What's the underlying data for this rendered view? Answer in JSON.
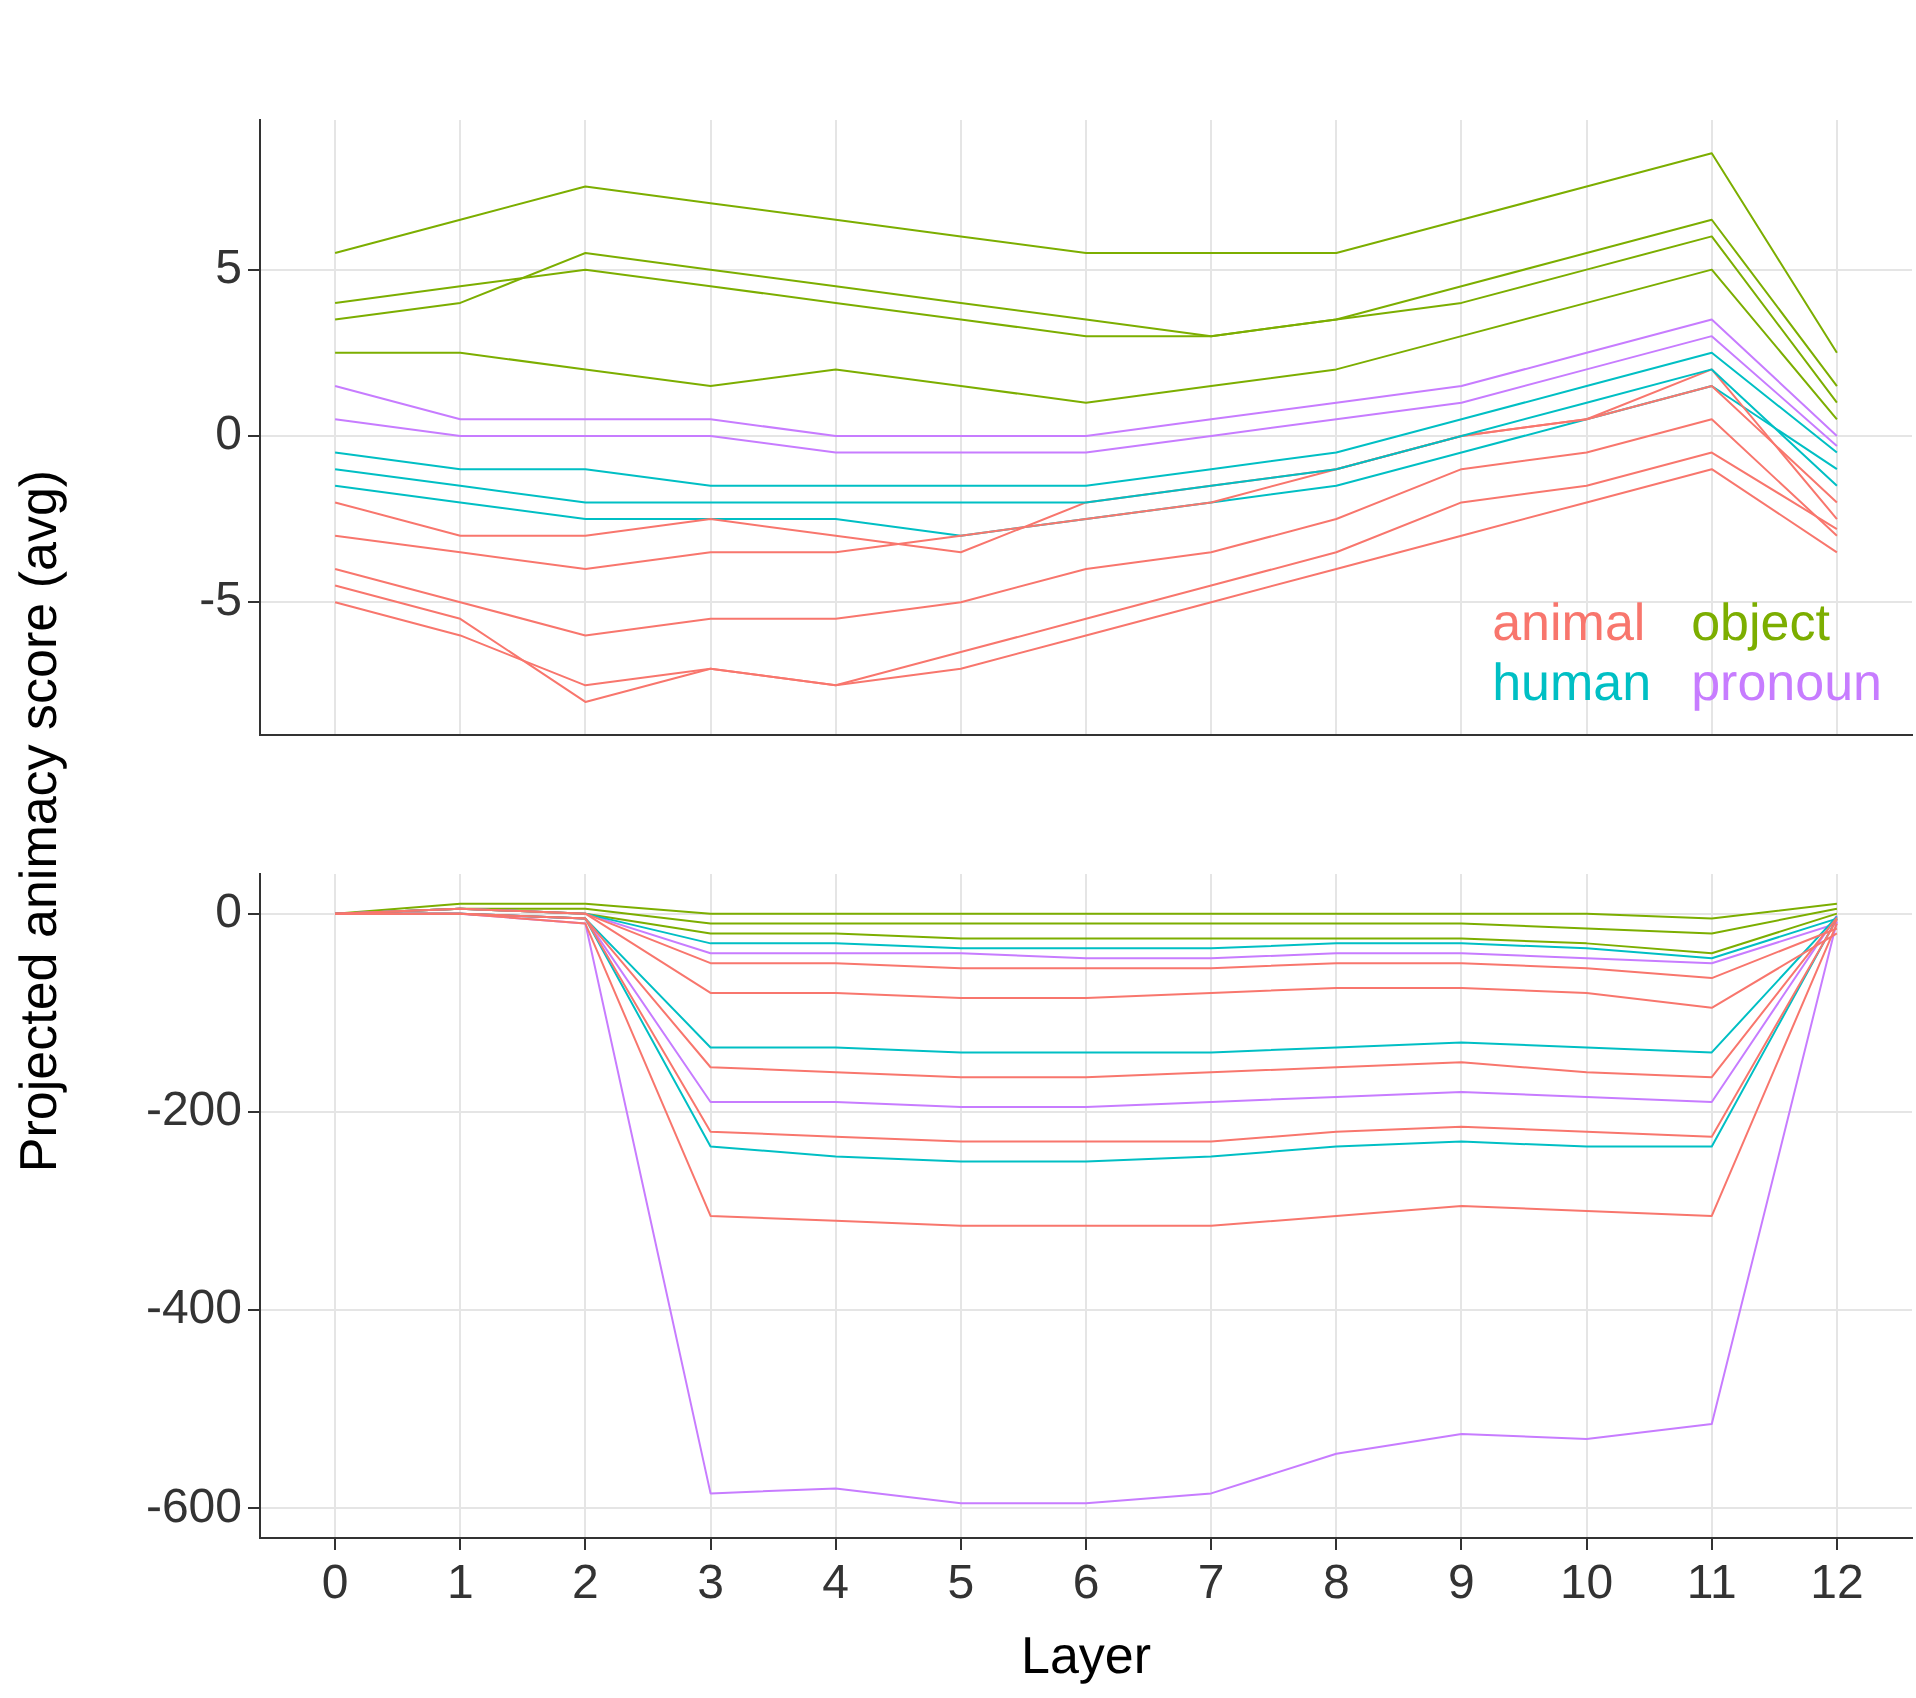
{
  "chart_data": [
    {
      "type": "line",
      "ylabel": "Projected animacy score (avg)",
      "x": [
        0,
        1,
        2,
        3,
        4,
        5,
        6,
        7,
        8,
        9,
        10,
        11,
        12
      ],
      "xlim": [
        -0.6,
        12.6
      ],
      "xticks": [
        0,
        1,
        2,
        3,
        4,
        5,
        6,
        7,
        8,
        9,
        10,
        11,
        12
      ],
      "ylim": [
        -9,
        9.5
      ],
      "yticks": [
        -5,
        0,
        5
      ],
      "grid": true,
      "tick_labels": "y",
      "legend": "bottom right",
      "series": [
        {
          "name": "animal",
          "color": "#f8766d",
          "values": [
            -4,
            -5,
            -6,
            -5.5,
            -5.5,
            -5,
            -4,
            -3.5,
            -2.5,
            -1,
            -0.5,
            0.5,
            -3
          ]
        },
        {
          "name": "object",
          "color": "#7cae00",
          "values": [
            4,
            4.5,
            5,
            4.5,
            4,
            3.5,
            3,
            3,
            3.5,
            4.5,
            5.5,
            6.5,
            1.5
          ]
        },
        {
          "name": "human",
          "color": "#00bfc4",
          "values": [
            -1,
            -1.5,
            -2,
            -2,
            -2,
            -2,
            -2,
            -1.5,
            -1,
            0,
            1,
            2,
            -1.5
          ]
        },
        {
          "name": "pronoun",
          "color": "#c77cff",
          "values": [
            1.5,
            0.5,
            0.5,
            0.5,
            0,
            0,
            0,
            0.5,
            1,
            1.5,
            2.5,
            3.5,
            0
          ]
        },
        {
          "color": "#f8766d",
          "values": [
            -3,
            -3.5,
            -4,
            -3.5,
            -3.5,
            -3,
            -2.5,
            -2,
            -1,
            0,
            0.5,
            1.5,
            -2
          ]
        },
        {
          "color": "#f8766d",
          "values": [
            -5,
            -6,
            -7.5,
            -7,
            -7.5,
            -7,
            -6,
            -5,
            -4,
            -3,
            -2,
            -1,
            -3.5
          ]
        },
        {
          "color": "#f8766d",
          "values": [
            -4.5,
            -5.5,
            -8,
            -7,
            -7.5,
            -6.5,
            -5.5,
            -4.5,
            -3.5,
            -2,
            -1.5,
            -0.5,
            -2.8
          ]
        },
        {
          "color": "#f8766d",
          "values": [
            -2,
            -3,
            -3,
            -2.5,
            -3,
            -3.5,
            -2,
            -1.5,
            -1,
            0,
            0.5,
            2,
            -2.5
          ]
        },
        {
          "color": "#00bfc4",
          "values": [
            -0.5,
            -1,
            -1,
            -1.5,
            -1.5,
            -1.5,
            -1.5,
            -1,
            -0.5,
            0.5,
            1.5,
            2.5,
            -0.5
          ]
        },
        {
          "color": "#00bfc4",
          "values": [
            -1.5,
            -2,
            -2.5,
            -2.5,
            -2.5,
            -3,
            -2.5,
            -2,
            -1.5,
            -0.5,
            0.5,
            1.5,
            -1
          ]
        },
        {
          "color": "#c77cff",
          "values": [
            0.5,
            0,
            0,
            0,
            -0.5,
            -0.5,
            -0.5,
            0,
            0.5,
            1,
            2,
            3,
            -0.3
          ]
        },
        {
          "color": "#7cae00",
          "values": [
            5.5,
            6.5,
            7.5,
            7,
            6.5,
            6,
            5.5,
            5.5,
            5.5,
            6.5,
            7.5,
            8.5,
            2.5
          ]
        },
        {
          "color": "#7cae00",
          "values": [
            2.5,
            2.5,
            2,
            1.5,
            2,
            1.5,
            1,
            1.5,
            2,
            3,
            4,
            5,
            0.5
          ]
        },
        {
          "color": "#7cae00",
          "values": [
            3.5,
            4,
            5.5,
            5,
            4.5,
            4,
            3.5,
            3,
            3.5,
            4,
            5,
            6,
            1
          ]
        }
      ]
    },
    {
      "type": "line",
      "xlabel": "Layer",
      "x": [
        0,
        1,
        2,
        3,
        4,
        5,
        6,
        7,
        8,
        9,
        10,
        11,
        12
      ],
      "xlim": [
        -0.6,
        12.6
      ],
      "xticks": [
        0,
        1,
        2,
        3,
        4,
        5,
        6,
        7,
        8,
        9,
        10,
        11,
        12
      ],
      "ylim": [
        -630,
        40
      ],
      "yticks": [
        -600,
        -400,
        -200,
        0
      ],
      "grid": true,
      "series": [
        {
          "color": "#f8766d",
          "values": [
            0,
            0,
            -10,
            -305,
            -310,
            -315,
            -315,
            -315,
            -305,
            -295,
            -300,
            -305,
            -10
          ]
        },
        {
          "color": "#f8766d",
          "values": [
            0,
            0,
            -5,
            -220,
            -225,
            -230,
            -230,
            -230,
            -220,
            -215,
            -220,
            -225,
            -6
          ]
        },
        {
          "color": "#f8766d",
          "values": [
            0,
            0,
            -5,
            -155,
            -160,
            -165,
            -165,
            -160,
            -155,
            -150,
            -160,
            -165,
            -4
          ]
        },
        {
          "color": "#f8766d",
          "values": [
            0,
            5,
            0,
            -50,
            -50,
            -55,
            -55,
            -55,
            -50,
            -50,
            -55,
            -65,
            -15
          ]
        },
        {
          "color": "#f8766d",
          "values": [
            0,
            5,
            0,
            -80,
            -80,
            -85,
            -85,
            -80,
            -75,
            -75,
            -80,
            -95,
            -20
          ]
        },
        {
          "color": "#00bfc4",
          "values": [
            0,
            0,
            -5,
            -235,
            -245,
            -250,
            -250,
            -245,
            -235,
            -230,
            -235,
            -235,
            -5
          ]
        },
        {
          "color": "#00bfc4",
          "values": [
            0,
            0,
            -5,
            -135,
            -135,
            -140,
            -140,
            -140,
            -135,
            -130,
            -135,
            -140,
            -3
          ]
        },
        {
          "color": "#00bfc4",
          "values": [
            0,
            5,
            0,
            -30,
            -30,
            -35,
            -35,
            -35,
            -30,
            -30,
            -35,
            -45,
            -5
          ]
        },
        {
          "color": "#c77cff",
          "values": [
            0,
            0,
            -10,
            -585,
            -580,
            -595,
            -595,
            -585,
            -545,
            -525,
            -530,
            -515,
            -8
          ]
        },
        {
          "color": "#c77cff",
          "values": [
            0,
            0,
            -5,
            -190,
            -190,
            -195,
            -195,
            -190,
            -185,
            -180,
            -185,
            -190,
            -2
          ]
        },
        {
          "color": "#c77cff",
          "values": [
            0,
            5,
            0,
            -40,
            -40,
            -40,
            -45,
            -45,
            -40,
            -40,
            -45,
            -50,
            -10
          ]
        },
        {
          "color": "#7cae00",
          "values": [
            0,
            10,
            10,
            0,
            0,
            0,
            0,
            0,
            0,
            0,
            0,
            -5,
            10
          ]
        },
        {
          "color": "#7cae00",
          "values": [
            0,
            5,
            5,
            -10,
            -10,
            -10,
            -10,
            -10,
            -10,
            -10,
            -15,
            -20,
            5
          ]
        },
        {
          "color": "#7cae00",
          "values": [
            0,
            5,
            0,
            -20,
            -20,
            -25,
            -25,
            -25,
            -25,
            -25,
            -30,
            -40,
            0
          ]
        }
      ]
    }
  ]
}
